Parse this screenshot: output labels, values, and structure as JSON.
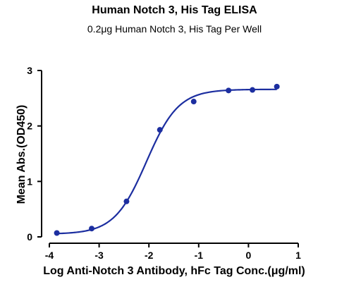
{
  "chart_data": {
    "type": "scatter",
    "title": "Human Notch 3, His Tag ELISA",
    "subtitle": "0.2μg Human Notch 3, His Tag Per Well",
    "xlabel": "Log Anti-Notch 3 Antibody, hFc Tag Conc.(μg/ml)",
    "ylabel": "Mean Abs.(OD450)",
    "xlim": [
      -4,
      1
    ],
    "ylim": [
      0,
      3
    ],
    "x_ticks": [
      -4,
      -3,
      -2,
      -1,
      0,
      1
    ],
    "y_ticks": [
      0,
      1,
      2,
      3
    ],
    "x_tick_labels": [
      "-4",
      "-3",
      "-2",
      "-1",
      "0",
      "1"
    ],
    "y_tick_labels": [
      "0",
      "1",
      "2",
      "3"
    ],
    "grid": false,
    "colors": {
      "series": "#1c2ea0"
    },
    "series": [
      {
        "x": [
          -3.85,
          -3.15,
          -2.45,
          -1.78,
          -1.1,
          -0.4,
          0.08,
          0.57
        ],
        "values": [
          0.07,
          0.15,
          0.64,
          1.93,
          2.44,
          2.64,
          2.65,
          2.71
        ]
      }
    ],
    "fit": {
      "type": "4PL",
      "bottom": 0.05,
      "top": 2.66,
      "log_ec50": -2.05,
      "hill": 1.35
    }
  }
}
